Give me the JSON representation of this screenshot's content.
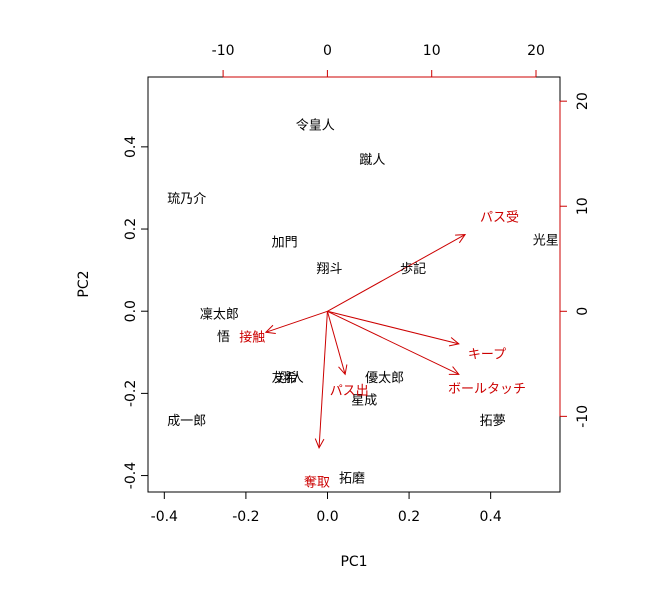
{
  "chart_data": {
    "type": "scatter",
    "title": "",
    "xlabel": "PC1",
    "ylabel": "PC2",
    "xlim": [
      -0.44,
      0.57
    ],
    "ylim": [
      -0.44,
      0.57
    ],
    "xticks": [
      -0.4,
      -0.2,
      0.0,
      0.2,
      0.4
    ],
    "yticks": [
      -0.4,
      -0.2,
      0.0,
      0.2,
      0.4
    ],
    "xtick_labels": [
      "-0.4",
      "-0.2",
      "0.0",
      "0.2",
      "0.4"
    ],
    "ytick_labels": [
      "-0.4",
      "-0.2",
      "0.0",
      "0.2",
      "0.4"
    ],
    "secondary_xlim": [
      -17.2,
      22.3
    ],
    "secondary_ylim": [
      -17.2,
      22.3
    ],
    "secondary_xticks": [
      -10,
      0,
      10,
      20
    ],
    "secondary_yticks": [
      -10,
      0,
      10,
      20
    ],
    "secondary_xtick_labels": [
      "-10",
      "0",
      "10",
      "20"
    ],
    "secondary_ytick_labels": [
      "-10",
      "0",
      "10",
      "20"
    ],
    "observations": [
      {
        "label": "令皇人",
        "x": -0.03,
        "y": 0.455
      },
      {
        "label": "蹴人",
        "x": 0.11,
        "y": 0.37
      },
      {
        "label": "琉乃介",
        "x": -0.345,
        "y": 0.275
      },
      {
        "label": "加門",
        "x": -0.105,
        "y": 0.17
      },
      {
        "label": "翔斗",
        "x": 0.005,
        "y": 0.105
      },
      {
        "label": "歩記",
        "x": 0.21,
        "y": 0.105
      },
      {
        "label": "光星",
        "x": 0.535,
        "y": 0.175
      },
      {
        "label": "凜太郎",
        "x": -0.265,
        "y": -0.005
      },
      {
        "label": "悟",
        "x": -0.255,
        "y": -0.06
      },
      {
        "label": "友希",
        "x": -0.105,
        "y": -0.16
      },
      {
        "label": "翔人",
        "x": -0.09,
        "y": -0.16
      },
      {
        "label": "優太郎",
        "x": 0.14,
        "y": -0.16
      },
      {
        "label": "星成",
        "x": 0.09,
        "y": -0.215
      },
      {
        "label": "拓夢",
        "x": 0.405,
        "y": -0.265
      },
      {
        "label": "成一郎",
        "x": -0.345,
        "y": -0.265
      },
      {
        "label": "拓磨",
        "x": 0.06,
        "y": -0.405
      }
    ],
    "variables": [
      {
        "label": "パス受",
        "x": 13.2,
        "y": 7.3,
        "label_x": 16.5,
        "label_y": 9.0
      },
      {
        "label": "接触",
        "x": -5.9,
        "y": -2.0,
        "label_x": -7.2,
        "label_y": -2.4
      },
      {
        "label": "キープ",
        "x": 12.6,
        "y": -3.1,
        "label_x": 15.3,
        "label_y": -4.0
      },
      {
        "label": "ボールタッチ",
        "x": 12.6,
        "y": -6.0,
        "label_x": 15.3,
        "label_y": -7.3
      },
      {
        "label": "パス出",
        "x": 1.7,
        "y": -6.0,
        "label_x": 2.1,
        "label_y": -7.5
      },
      {
        "label": "奪取",
        "x": -0.8,
        "y": -13.0,
        "label_x": -1.0,
        "label_y": -16.2
      }
    ]
  }
}
